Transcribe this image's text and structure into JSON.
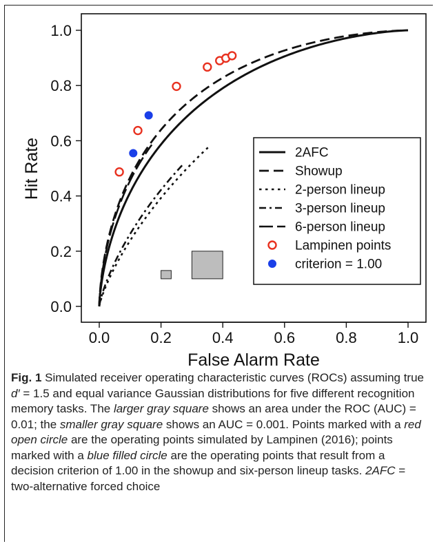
{
  "chart_data": {
    "type": "line",
    "title": "",
    "xlabel": "False Alarm Rate",
    "ylabel": "Hit Rate",
    "xlim": [
      0.0,
      1.0
    ],
    "ylim": [
      0.0,
      1.0
    ],
    "xticks": [
      "0.0",
      "0.2",
      "0.4",
      "0.6",
      "0.8",
      "1.0"
    ],
    "yticks": [
      "0.0",
      "0.2",
      "0.4",
      "0.6",
      "0.8",
      "1.0"
    ],
    "grid": false,
    "legend_position": "right",
    "dprime": 1.5,
    "series": [
      {
        "name": "2AFC",
        "style": "solid",
        "fa_max": 1.0
      },
      {
        "name": "Showup",
        "style": "dashed",
        "fa_max": 1.0
      },
      {
        "name": "2-person lineup",
        "style": "dotted",
        "fa_max": 0.36
      },
      {
        "name": "3-person lineup",
        "style": "dashdot",
        "fa_max": 0.27
      },
      {
        "name": "6-person lineup",
        "style": "longdash",
        "fa_max": 0.17
      }
    ],
    "lampinen_points": {
      "name": "Lampinen points",
      "color": "#e8311f",
      "x": [
        0.065,
        0.125,
        0.25,
        0.35,
        0.39,
        0.41,
        0.43
      ],
      "y": [
        0.487,
        0.637,
        0.797,
        0.867,
        0.89,
        0.899,
        0.908
      ]
    },
    "criterion_points": {
      "name": "criterion = 1.00",
      "color": "#1a3fe8",
      "x": [
        0.11,
        0.16
      ],
      "y": [
        0.555,
        0.692
      ]
    },
    "squares": [
      {
        "label": "AUC = 0.001",
        "x0": 0.2,
        "x1": 0.233,
        "y0": 0.1,
        "y1": 0.13
      },
      {
        "label": "AUC = 0.01",
        "x0": 0.3,
        "x1": 0.4,
        "y0": 0.1,
        "y1": 0.2
      }
    ]
  },
  "caption": {
    "fig_label": "Fig. 1",
    "text_1": " Simulated receiver operating characteristic curves (ROCs) assuming true ",
    "dprime_symbol": "d′",
    "text_2": " = 1.5 and equal variance Gaussian distributions for five different recognition memory tasks. The ",
    "larger_square": "larger gray square",
    "text_3": " shows an area under the ROC (AUC) = 0.01; the ",
    "smaller_square": "smaller gray square",
    "text_4": " shows an AUC = 0.001. Points marked with a ",
    "red_circle": "red open circle",
    "text_5": " are the operating points simulated by Lampinen (2016); points marked with a ",
    "blue_circle": "blue filled circle",
    "text_6": " are the operating points that result from a decision criterion of 1.00 in the showup and six-person lineup tasks. ",
    "afc": "2AFC",
    "text_7": " = two-alternative forced choice"
  }
}
